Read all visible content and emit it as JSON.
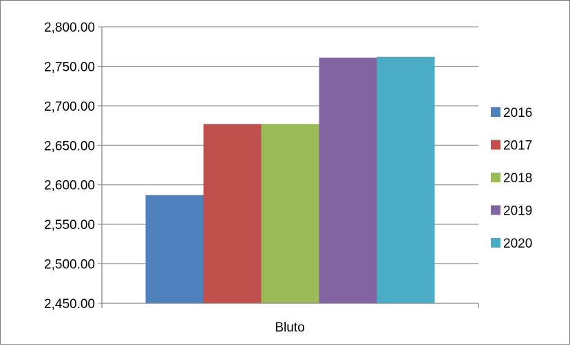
{
  "chart_data": {
    "type": "bar",
    "categories": [
      "Bluto"
    ],
    "series": [
      {
        "name": "2016",
        "values": [
          2587
        ],
        "color": "#4F81BD"
      },
      {
        "name": "2017",
        "values": [
          2677
        ],
        "color": "#C0504D"
      },
      {
        "name": "2018",
        "values": [
          2677
        ],
        "color": "#9BBB59"
      },
      {
        "name": "2019",
        "values": [
          2761
        ],
        "color": "#8064A2"
      },
      {
        "name": "2020",
        "values": [
          2762
        ],
        "color": "#4BACC6"
      }
    ],
    "title": "",
    "xlabel": "",
    "ylabel": "",
    "ylim": [
      2450,
      2800
    ],
    "yticks": [
      "2,450.00",
      "2,500.00",
      "2,550.00",
      "2,600.00",
      "2,650.00",
      "2,700.00",
      "2,750.00",
      "2,800.00"
    ],
    "ytick_values": [
      2450,
      2500,
      2550,
      2600,
      2650,
      2700,
      2750,
      2800
    ],
    "grid": true,
    "legend_position": "right"
  }
}
